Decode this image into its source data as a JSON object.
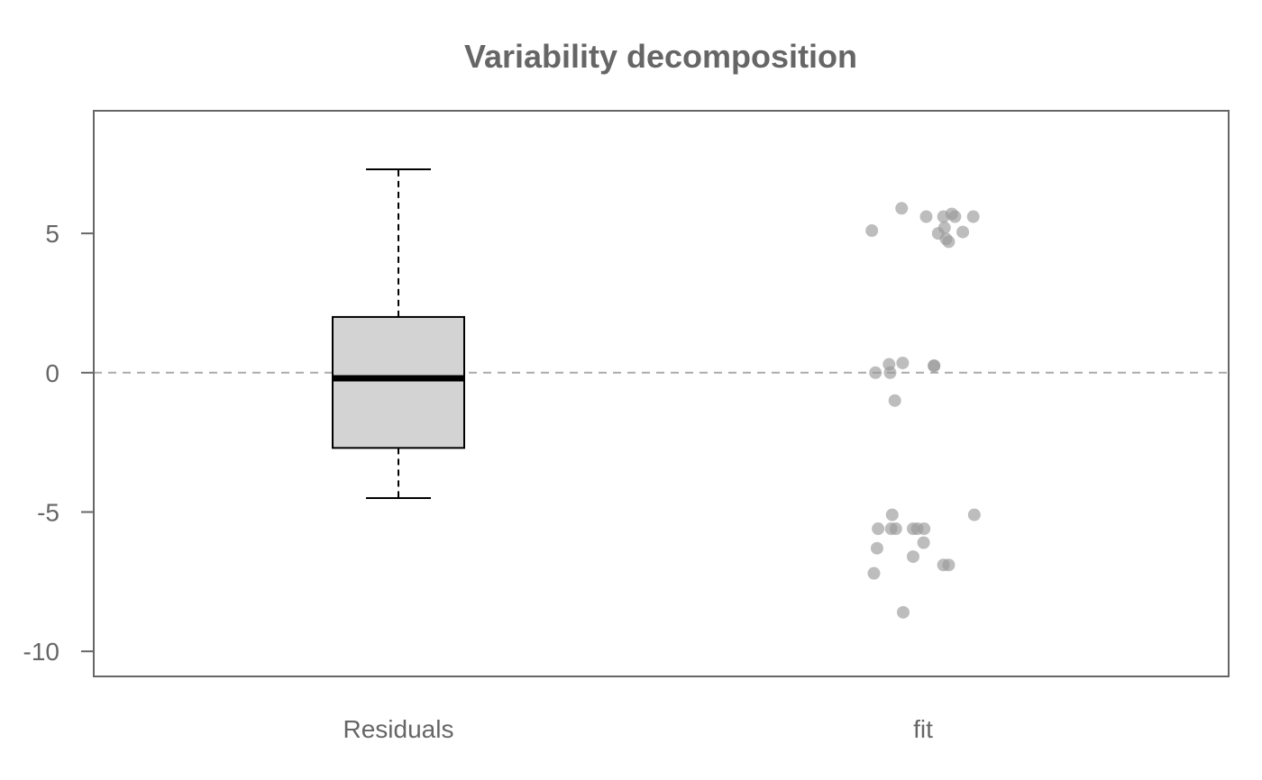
{
  "chart_data": {
    "type": "box",
    "title": "Variability decomposition",
    "xlabel": "",
    "ylabel": "",
    "categories": [
      "Residuals",
      "fit"
    ],
    "ylim": [
      -10.9,
      9.4
    ],
    "yticks": [
      5,
      0,
      -5,
      -10
    ],
    "ytick_labels": [
      "5",
      "0",
      "-5",
      "-10"
    ],
    "reference_line": {
      "y": 0,
      "style": "dashed",
      "color": "#aaaaaa"
    },
    "box": {
      "category": "Residuals",
      "lower_whisker": -4.5,
      "q1": -2.7,
      "median": -0.2,
      "q3": 2.0,
      "upper_whisker": 7.3,
      "fill": "#d3d3d3"
    },
    "points": {
      "category": "fit",
      "color": "#999999",
      "offsets": [
        -0.098,
        -0.041,
        0.006,
        0.061,
        0.039,
        0.055,
        0.096,
        0.041,
        0.044,
        0.049,
        0.029,
        0.076,
        -0.091,
        -0.065,
        -0.063,
        -0.039,
        0.021,
        0.021,
        -0.054,
        -0.059,
        0.098,
        -0.086,
        -0.061,
        -0.011,
        -0.052,
        0.002,
        -0.019,
        0.001,
        -0.088,
        -0.019,
        0.049,
        -0.094,
        0.039,
        -0.038
      ],
      "values": [
        5.1,
        5.9,
        5.6,
        5.6,
        5.6,
        5.7,
        5.6,
        5.2,
        4.8,
        4.7,
        5.0,
        5.05,
        0.0,
        0.3,
        0.0,
        0.35,
        0.25,
        0.25,
        -1.0,
        -5.1,
        -5.1,
        -5.6,
        -5.6,
        -5.6,
        -5.6,
        -5.6,
        -5.6,
        -6.1,
        -6.3,
        -6.6,
        -6.9,
        -7.2,
        -6.9,
        -8.6
      ]
    }
  }
}
